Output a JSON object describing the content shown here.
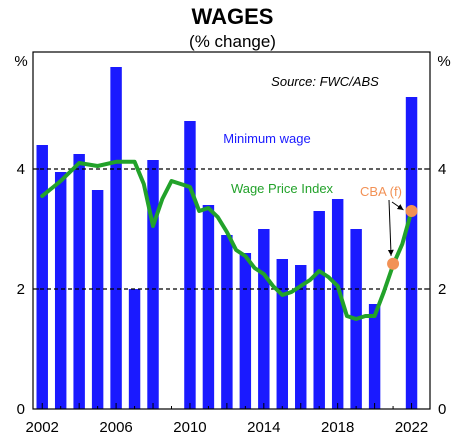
{
  "title": "WAGES",
  "subtitle": "(% change)",
  "chart_data": {
    "type": "bar",
    "title": "WAGES",
    "subtitle": "(% change)",
    "left_unit": "%",
    "right_unit": "%",
    "source": "Source: FWC/ABS",
    "ylim": [
      0,
      5.95
    ],
    "yticks": [
      0,
      2,
      4
    ],
    "reference_lines": [
      2,
      4
    ],
    "xlim": [
      2001.5,
      2023.0
    ],
    "xticks": [
      2002,
      2006,
      2010,
      2014,
      2018,
      2022
    ],
    "colors": {
      "bars": "#1a1aff",
      "line": "#22a22a",
      "forecast": "#f29155",
      "label_bars": "#1a1aff",
      "label_line": "#22a22a",
      "label_forecast": "#f29155"
    },
    "bars": {
      "name": "Minimum wage",
      "x": [
        2002,
        2003,
        2004,
        2005,
        2006,
        2007,
        2008,
        2009,
        2010,
        2011,
        2012,
        2013,
        2014,
        2015,
        2016,
        2017,
        2018,
        2019,
        2020,
        2021,
        2022
      ],
      "values": [
        4.4,
        3.95,
        4.25,
        3.65,
        5.7,
        2.0,
        4.15,
        null,
        4.8,
        3.4,
        2.9,
        2.6,
        3.0,
        2.5,
        2.4,
        3.3,
        3.5,
        3.0,
        1.75,
        null,
        5.2
      ]
    },
    "line": {
      "name": "Wage Price Index",
      "points": [
        [
          2002.0,
          3.55
        ],
        [
          2003.0,
          3.8
        ],
        [
          2004.0,
          4.1
        ],
        [
          2005.0,
          4.05
        ],
        [
          2006.0,
          4.12
        ],
        [
          2007.0,
          4.12
        ],
        [
          2007.5,
          3.75
        ],
        [
          2008.0,
          3.05
        ],
        [
          2008.5,
          3.5
        ],
        [
          2009.0,
          3.8
        ],
        [
          2010.0,
          3.7
        ],
        [
          2010.5,
          3.3
        ],
        [
          2011.0,
          3.35
        ],
        [
          2011.5,
          3.2
        ],
        [
          2012.0,
          2.95
        ],
        [
          2012.5,
          2.65
        ],
        [
          2013.0,
          2.55
        ],
        [
          2013.5,
          2.35
        ],
        [
          2014.0,
          2.25
        ],
        [
          2014.5,
          2.05
        ],
        [
          2015.0,
          1.9
        ],
        [
          2015.5,
          1.95
        ],
        [
          2016.0,
          2.05
        ],
        [
          2016.5,
          2.15
        ],
        [
          2017.0,
          2.3
        ],
        [
          2017.5,
          2.2
        ],
        [
          2018.0,
          2.05
        ],
        [
          2018.5,
          1.55
        ],
        [
          2019.0,
          1.5
        ],
        [
          2019.5,
          1.55
        ],
        [
          2020.0,
          1.55
        ],
        [
          2020.5,
          1.95
        ],
        [
          2021.0,
          2.4
        ],
        [
          2021.5,
          2.75
        ],
        [
          2022.0,
          3.3
        ]
      ]
    },
    "forecast": {
      "name": "CBA (f)",
      "points": [
        [
          2021.0,
          2.42
        ],
        [
          2022.0,
          3.3
        ]
      ]
    },
    "labels": {
      "bars_label": "Minimum wage",
      "line_label": "Wage Price Index",
      "forecast_label": "CBA (f)"
    }
  }
}
